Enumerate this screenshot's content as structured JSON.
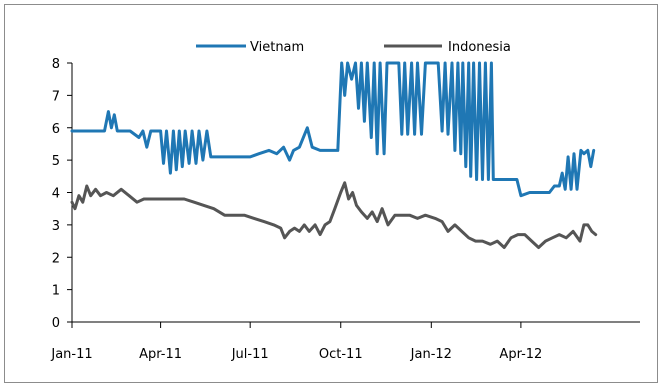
{
  "chart_data": {
    "type": "line",
    "title": "",
    "xlabel": "",
    "ylabel": "",
    "ylim": [
      0,
      8
    ],
    "yticks": [
      0,
      1,
      2,
      3,
      4,
      5,
      6,
      7,
      8
    ],
    "xlim": [
      "2011-01-01",
      "2012-07-31"
    ],
    "xticks": [
      {
        "date": "2011-01-01",
        "label": "Jan-11"
      },
      {
        "date": "2011-04-01",
        "label": "Apr-11"
      },
      {
        "date": "2011-07-01",
        "label": "Jul-11"
      },
      {
        "date": "2011-10-01",
        "label": "Oct-11"
      },
      {
        "date": "2012-01-01",
        "label": "Jan-12"
      },
      {
        "date": "2012-04-01",
        "label": "Apr-12"
      }
    ],
    "grid": false,
    "legend_position": "top",
    "series": [
      {
        "name": "Vietnam",
        "color": "#1f77b4",
        "points": [
          [
            "2011-01-01",
            5.9
          ],
          [
            "2011-01-15",
            5.9
          ],
          [
            "2011-01-25",
            5.9
          ],
          [
            "2011-02-03",
            5.9
          ],
          [
            "2011-02-07",
            6.5
          ],
          [
            "2011-02-10",
            6.0
          ],
          [
            "2011-02-13",
            6.4
          ],
          [
            "2011-02-16",
            5.9
          ],
          [
            "2011-03-01",
            5.9
          ],
          [
            "2011-03-10",
            5.7
          ],
          [
            "2011-03-14",
            5.9
          ],
          [
            "2011-03-18",
            5.4
          ],
          [
            "2011-03-22",
            5.9
          ],
          [
            "2011-04-01",
            5.9
          ],
          [
            "2011-04-04",
            4.9
          ],
          [
            "2011-04-07",
            5.9
          ],
          [
            "2011-04-11",
            4.6
          ],
          [
            "2011-04-14",
            5.9
          ],
          [
            "2011-04-17",
            4.7
          ],
          [
            "2011-04-20",
            5.9
          ],
          [
            "2011-04-23",
            4.8
          ],
          [
            "2011-04-26",
            5.9
          ],
          [
            "2011-04-30",
            4.9
          ],
          [
            "2011-05-03",
            5.9
          ],
          [
            "2011-05-07",
            4.9
          ],
          [
            "2011-05-10",
            5.9
          ],
          [
            "2011-05-14",
            5.0
          ],
          [
            "2011-05-18",
            5.9
          ],
          [
            "2011-05-22",
            5.1
          ],
          [
            "2011-06-01",
            5.1
          ],
          [
            "2011-06-15",
            5.1
          ],
          [
            "2011-07-01",
            5.1
          ],
          [
            "2011-07-10",
            5.2
          ],
          [
            "2011-07-20",
            5.3
          ],
          [
            "2011-07-28",
            5.2
          ],
          [
            "2011-08-04",
            5.4
          ],
          [
            "2011-08-10",
            5.0
          ],
          [
            "2011-08-14",
            5.3
          ],
          [
            "2011-08-20",
            5.4
          ],
          [
            "2011-08-28",
            6.0
          ],
          [
            "2011-09-02",
            5.4
          ],
          [
            "2011-09-10",
            5.3
          ],
          [
            "2011-09-20",
            5.3
          ],
          [
            "2011-09-28",
            5.3
          ],
          [
            "2011-10-02",
            8.0
          ],
          [
            "2011-10-05",
            7.0
          ],
          [
            "2011-10-08",
            8.0
          ],
          [
            "2011-10-12",
            7.5
          ],
          [
            "2011-10-16",
            8.0
          ],
          [
            "2011-10-19",
            6.6
          ],
          [
            "2011-10-22",
            8.0
          ],
          [
            "2011-10-25",
            6.2
          ],
          [
            "2011-10-28",
            8.0
          ],
          [
            "2011-11-01",
            5.7
          ],
          [
            "2011-11-04",
            8.0
          ],
          [
            "2011-11-07",
            5.2
          ],
          [
            "2011-11-10",
            8.0
          ],
          [
            "2011-11-14",
            5.2
          ],
          [
            "2011-11-17",
            8.0
          ],
          [
            "2011-11-29",
            8.0
          ],
          [
            "2011-12-02",
            5.8
          ],
          [
            "2011-12-05",
            8.0
          ],
          [
            "2011-12-08",
            5.8
          ],
          [
            "2011-12-12",
            8.0
          ],
          [
            "2011-12-15",
            5.8
          ],
          [
            "2011-12-18",
            8.0
          ],
          [
            "2011-12-22",
            5.8
          ],
          [
            "2011-12-26",
            8.0
          ],
          [
            "2012-01-01",
            8.0
          ],
          [
            "2012-01-08",
            8.0
          ],
          [
            "2012-01-12",
            5.9
          ],
          [
            "2012-01-15",
            8.0
          ],
          [
            "2012-01-18",
            5.8
          ],
          [
            "2012-01-22",
            8.0
          ],
          [
            "2012-01-25",
            5.3
          ],
          [
            "2012-01-28",
            8.0
          ],
          [
            "2012-01-31",
            5.2
          ],
          [
            "2012-02-02",
            8.0
          ],
          [
            "2012-02-05",
            4.8
          ],
          [
            "2012-02-08",
            8.0
          ],
          [
            "2012-02-10",
            4.5
          ],
          [
            "2012-02-13",
            8.0
          ],
          [
            "2012-02-16",
            4.4
          ],
          [
            "2012-02-19",
            8.0
          ],
          [
            "2012-02-22",
            4.4
          ],
          [
            "2012-02-25",
            8.0
          ],
          [
            "2012-02-28",
            4.4
          ],
          [
            "2012-03-02",
            8.0
          ],
          [
            "2012-03-04",
            4.4
          ],
          [
            "2012-03-10",
            4.4
          ],
          [
            "2012-03-20",
            4.4
          ],
          [
            "2012-03-28",
            4.4
          ],
          [
            "2012-04-01",
            3.9
          ],
          [
            "2012-04-10",
            4.0
          ],
          [
            "2012-04-20",
            4.0
          ],
          [
            "2012-04-30",
            4.0
          ],
          [
            "2012-05-05",
            4.2
          ],
          [
            "2012-05-10",
            4.2
          ],
          [
            "2012-05-13",
            4.6
          ],
          [
            "2012-05-16",
            4.1
          ],
          [
            "2012-05-19",
            5.1
          ],
          [
            "2012-05-22",
            4.1
          ],
          [
            "2012-05-25",
            5.2
          ],
          [
            "2012-05-28",
            4.1
          ],
          [
            "2012-06-01",
            5.3
          ],
          [
            "2012-06-04",
            5.2
          ],
          [
            "2012-06-08",
            5.3
          ],
          [
            "2012-06-11",
            4.8
          ],
          [
            "2012-06-14",
            5.3
          ]
        ]
      },
      {
        "name": "Indonesia",
        "color": "#555555",
        "points": [
          [
            "2011-01-01",
            3.7
          ],
          [
            "2011-01-04",
            3.5
          ],
          [
            "2011-01-08",
            3.9
          ],
          [
            "2011-01-12",
            3.7
          ],
          [
            "2011-01-16",
            4.2
          ],
          [
            "2011-01-20",
            3.9
          ],
          [
            "2011-01-25",
            4.1
          ],
          [
            "2011-01-30",
            3.9
          ],
          [
            "2011-02-05",
            4.0
          ],
          [
            "2011-02-12",
            3.9
          ],
          [
            "2011-02-20",
            4.1
          ],
          [
            "2011-02-28",
            3.9
          ],
          [
            "2011-03-08",
            3.7
          ],
          [
            "2011-03-15",
            3.8
          ],
          [
            "2011-03-25",
            3.8
          ],
          [
            "2011-04-05",
            3.8
          ],
          [
            "2011-04-15",
            3.8
          ],
          [
            "2011-04-25",
            3.8
          ],
          [
            "2011-05-05",
            3.7
          ],
          [
            "2011-05-15",
            3.6
          ],
          [
            "2011-05-25",
            3.5
          ],
          [
            "2011-06-05",
            3.3
          ],
          [
            "2011-06-15",
            3.3
          ],
          [
            "2011-06-25",
            3.3
          ],
          [
            "2011-07-05",
            3.2
          ],
          [
            "2011-07-15",
            3.1
          ],
          [
            "2011-07-25",
            3.0
          ],
          [
            "2011-08-01",
            2.9
          ],
          [
            "2011-08-05",
            2.6
          ],
          [
            "2011-08-10",
            2.8
          ],
          [
            "2011-08-15",
            2.9
          ],
          [
            "2011-08-20",
            2.8
          ],
          [
            "2011-08-25",
            3.0
          ],
          [
            "2011-08-30",
            2.8
          ],
          [
            "2011-09-05",
            3.0
          ],
          [
            "2011-09-10",
            2.7
          ],
          [
            "2011-09-15",
            3.0
          ],
          [
            "2011-09-20",
            3.1
          ],
          [
            "2011-09-25",
            3.5
          ],
          [
            "2011-10-01",
            4.0
          ],
          [
            "2011-10-05",
            4.3
          ],
          [
            "2011-10-09",
            3.8
          ],
          [
            "2011-10-13",
            4.0
          ],
          [
            "2011-10-17",
            3.6
          ],
          [
            "2011-10-22",
            3.4
          ],
          [
            "2011-10-28",
            3.2
          ],
          [
            "2011-11-02",
            3.4
          ],
          [
            "2011-11-07",
            3.1
          ],
          [
            "2011-11-12",
            3.5
          ],
          [
            "2011-11-18",
            3.0
          ],
          [
            "2011-11-25",
            3.3
          ],
          [
            "2011-12-02",
            3.3
          ],
          [
            "2011-12-10",
            3.3
          ],
          [
            "2011-12-18",
            3.2
          ],
          [
            "2011-12-26",
            3.3
          ],
          [
            "2012-01-05",
            3.2
          ],
          [
            "2012-01-12",
            3.1
          ],
          [
            "2012-01-18",
            2.8
          ],
          [
            "2012-01-25",
            3.0
          ],
          [
            "2012-02-01",
            2.8
          ],
          [
            "2012-02-08",
            2.6
          ],
          [
            "2012-02-15",
            2.5
          ],
          [
            "2012-02-22",
            2.5
          ],
          [
            "2012-03-01",
            2.4
          ],
          [
            "2012-03-08",
            2.5
          ],
          [
            "2012-03-15",
            2.3
          ],
          [
            "2012-03-22",
            2.6
          ],
          [
            "2012-03-29",
            2.7
          ],
          [
            "2012-04-05",
            2.7
          ],
          [
            "2012-04-12",
            2.5
          ],
          [
            "2012-04-19",
            2.3
          ],
          [
            "2012-04-26",
            2.5
          ],
          [
            "2012-05-03",
            2.6
          ],
          [
            "2012-05-10",
            2.7
          ],
          [
            "2012-05-17",
            2.6
          ],
          [
            "2012-05-24",
            2.8
          ],
          [
            "2012-05-31",
            2.5
          ],
          [
            "2012-06-04",
            3.0
          ],
          [
            "2012-06-08",
            3.0
          ],
          [
            "2012-06-12",
            2.8
          ],
          [
            "2012-06-16",
            2.7
          ]
        ]
      }
    ]
  }
}
